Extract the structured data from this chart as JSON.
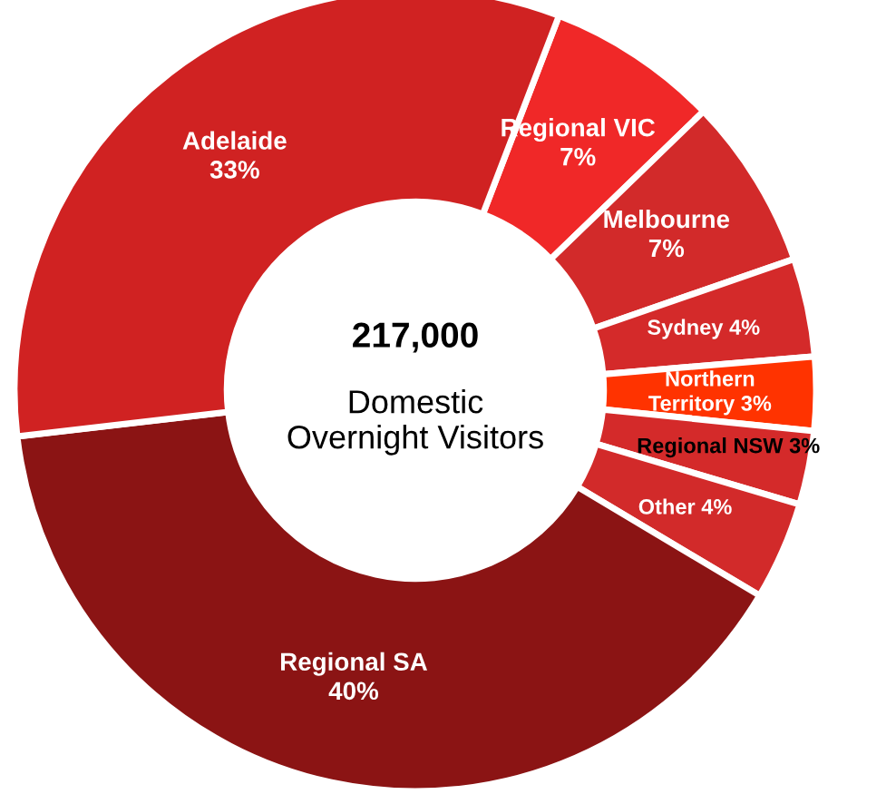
{
  "chart_data": {
    "type": "donut",
    "title": "217,000",
    "subtitle": "Domestic Overnight Visitors",
    "categories": [
      "Regional VIC",
      "Melbourne",
      "Sydney",
      "Northern Territory",
      "Regional NSW",
      "Other",
      "Regional SA",
      "Adelaide"
    ],
    "values": [
      7,
      7,
      4,
      3,
      3,
      4,
      40,
      33
    ],
    "colors": [
      "#f02828",
      "#d22a2a",
      "#d42a2a",
      "#ff3300",
      "#d42a2a",
      "#d22a2a",
      "#8b1414",
      "#d02222"
    ],
    "value_labels": [
      "7%",
      "7%",
      "4%",
      "3%",
      "3%",
      "4%",
      "40%",
      "33%"
    ],
    "legend": false
  }
}
